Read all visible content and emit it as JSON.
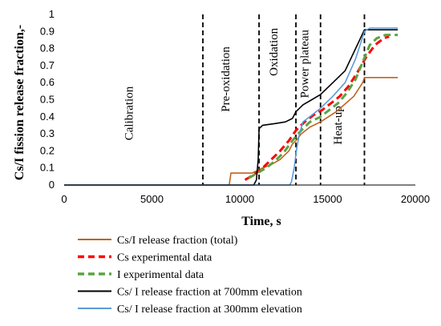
{
  "chart_data": {
    "type": "line",
    "title": "",
    "xlabel": "Time, s",
    "ylabel": "Cs/I fission release fraction,-",
    "xlim": [
      0,
      20000
    ],
    "ylim": [
      0,
      1
    ],
    "xticks": [
      "0",
      "5000",
      "10000",
      "15000",
      "20000"
    ],
    "yticks": [
      "0",
      "0.1",
      "0.2",
      "0.3",
      "0.4",
      "0.5",
      "0.6",
      "0.7",
      "0.8",
      "0.9",
      "1"
    ],
    "grid": false,
    "legend_position": "bottom",
    "phase_boundaries": [
      7900,
      11100,
      13200,
      14600,
      17100
    ],
    "phase_labels": [
      {
        "text": "Calibration",
        "x": 3900,
        "y": 0.42
      },
      {
        "text": "Pre-oxidation",
        "x": 9400,
        "y": 0.62
      },
      {
        "text": "Oxidation",
        "x": 12150,
        "y": 0.78
      },
      {
        "text": "Power plateau",
        "x": 13900,
        "y": 0.71
      },
      {
        "text": "Heat-up",
        "x": 15800,
        "y": 0.35
      }
    ],
    "series": [
      {
        "name": "Cs/I release fraction (total)",
        "color": "#c0631e",
        "dash": "solid",
        "points": [
          [
            0,
            0
          ],
          [
            9400,
            0
          ],
          [
            9500,
            0.07
          ],
          [
            10700,
            0.07
          ],
          [
            10900,
            0.08
          ],
          [
            11300,
            0.1
          ],
          [
            11800,
            0.12
          ],
          [
            12300,
            0.15
          ],
          [
            12800,
            0.2
          ],
          [
            13000,
            0.24
          ],
          [
            13200,
            0.26
          ],
          [
            13500,
            0.3
          ],
          [
            14000,
            0.34
          ],
          [
            14600,
            0.37
          ],
          [
            15500,
            0.43
          ],
          [
            16500,
            0.52
          ],
          [
            17000,
            0.6
          ],
          [
            17100,
            0.63
          ],
          [
            19000,
            0.63
          ]
        ]
      },
      {
        "name": "Cs experimental data",
        "color": "#ff0000",
        "dash": "dashed",
        "points": [
          [
            10300,
            0.03
          ],
          [
            10800,
            0.06
          ],
          [
            11300,
            0.1
          ],
          [
            11800,
            0.15
          ],
          [
            12300,
            0.2
          ],
          [
            12800,
            0.26
          ],
          [
            13200,
            0.32
          ],
          [
            13700,
            0.37
          ],
          [
            14200,
            0.41
          ],
          [
            14700,
            0.44
          ],
          [
            15200,
            0.48
          ],
          [
            15700,
            0.52
          ],
          [
            16200,
            0.58
          ],
          [
            16700,
            0.66
          ],
          [
            17200,
            0.75
          ],
          [
            17700,
            0.82
          ],
          [
            18200,
            0.86
          ],
          [
            18500,
            0.87
          ]
        ]
      },
      {
        "name": "I experimental data",
        "color": "#5aa341",
        "dash": "dashed",
        "points": [
          [
            10500,
            0.04
          ],
          [
            11000,
            0.07
          ],
          [
            11500,
            0.1
          ],
          [
            12000,
            0.14
          ],
          [
            12500,
            0.19
          ],
          [
            13000,
            0.26
          ],
          [
            13500,
            0.32
          ],
          [
            14000,
            0.37
          ],
          [
            14600,
            0.4
          ],
          [
            15100,
            0.44
          ],
          [
            15600,
            0.48
          ],
          [
            16100,
            0.54
          ],
          [
            16600,
            0.62
          ],
          [
            17000,
            0.72
          ],
          [
            17400,
            0.82
          ],
          [
            17800,
            0.86
          ],
          [
            18300,
            0.88
          ],
          [
            19000,
            0.88
          ]
        ]
      },
      {
        "name": "Cs/ I release fraction at 700mm elevation",
        "color": "#000000",
        "dash": "solid",
        "points": [
          [
            0,
            0
          ],
          [
            10800,
            0
          ],
          [
            10950,
            0.03
          ],
          [
            11050,
            0.15
          ],
          [
            11100,
            0.33
          ],
          [
            11300,
            0.35
          ],
          [
            12000,
            0.36
          ],
          [
            12600,
            0.37
          ],
          [
            13000,
            0.39
          ],
          [
            13200,
            0.43
          ],
          [
            13600,
            0.47
          ],
          [
            14100,
            0.5
          ],
          [
            14600,
            0.53
          ],
          [
            15300,
            0.6
          ],
          [
            16000,
            0.67
          ],
          [
            16600,
            0.8
          ],
          [
            17100,
            0.91
          ],
          [
            19000,
            0.91
          ]
        ]
      },
      {
        "name": "Cs/ I release fraction at 300mm elevation",
        "color": "#5b9bd5",
        "dash": "solid",
        "points": [
          [
            0,
            0
          ],
          [
            12850,
            0
          ],
          [
            12950,
            0.02
          ],
          [
            13100,
            0.1
          ],
          [
            13250,
            0.22
          ],
          [
            13400,
            0.3
          ],
          [
            13600,
            0.37
          ],
          [
            14100,
            0.41
          ],
          [
            14600,
            0.45
          ],
          [
            15300,
            0.52
          ],
          [
            16000,
            0.6
          ],
          [
            16600,
            0.74
          ],
          [
            17100,
            0.9
          ],
          [
            17400,
            0.92
          ],
          [
            19000,
            0.92
          ]
        ]
      }
    ]
  }
}
